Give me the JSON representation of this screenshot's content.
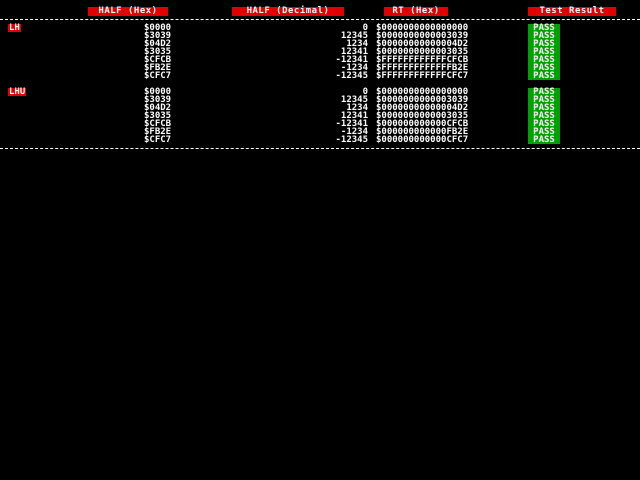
{
  "headers": {
    "half_hex": "HALF (Hex)",
    "half_decimal": "HALF (Decimal)",
    "rt_hex": "RT (Hex)",
    "test_result": "Test Result"
  },
  "colors": {
    "background": "#000000",
    "header_bg": "#e00000",
    "pass_bg": "#00a000",
    "text": "#ffffff"
  },
  "groups": [
    {
      "label": "LH",
      "rows": [
        {
          "hex": "$0000",
          "dec": "0",
          "rt": "$0000000000000000",
          "result": "PASS"
        },
        {
          "hex": "$3039",
          "dec": "12345",
          "rt": "$0000000000003039",
          "result": "PASS"
        },
        {
          "hex": "$04D2",
          "dec": "1234",
          "rt": "$00000000000004D2",
          "result": "PASS"
        },
        {
          "hex": "$3035",
          "dec": "12341",
          "rt": "$0000000000003035",
          "result": "PASS"
        },
        {
          "hex": "$CFCB",
          "dec": "-12341",
          "rt": "$FFFFFFFFFFFFCFCB",
          "result": "PASS"
        },
        {
          "hex": "$FB2E",
          "dec": "-1234",
          "rt": "$FFFFFFFFFFFFFB2E",
          "result": "PASS"
        },
        {
          "hex": "$CFC7",
          "dec": "-12345",
          "rt": "$FFFFFFFFFFFFCFC7",
          "result": "PASS"
        }
      ]
    },
    {
      "label": "LHU",
      "rows": [
        {
          "hex": "$0000",
          "dec": "0",
          "rt": "$0000000000000000",
          "result": "PASS"
        },
        {
          "hex": "$3039",
          "dec": "12345",
          "rt": "$0000000000003039",
          "result": "PASS"
        },
        {
          "hex": "$04D2",
          "dec": "1234",
          "rt": "$00000000000004D2",
          "result": "PASS"
        },
        {
          "hex": "$3035",
          "dec": "12341",
          "rt": "$0000000000003035",
          "result": "PASS"
        },
        {
          "hex": "$CFCB",
          "dec": "-12341",
          "rt": "$000000000000CFCB",
          "result": "PASS"
        },
        {
          "hex": "$FB2E",
          "dec": "-1234",
          "rt": "$000000000000FB2E",
          "result": "PASS"
        },
        {
          "hex": "$CFC7",
          "dec": "-12345",
          "rt": "$000000000000CFC7",
          "result": "PASS"
        }
      ]
    }
  ]
}
